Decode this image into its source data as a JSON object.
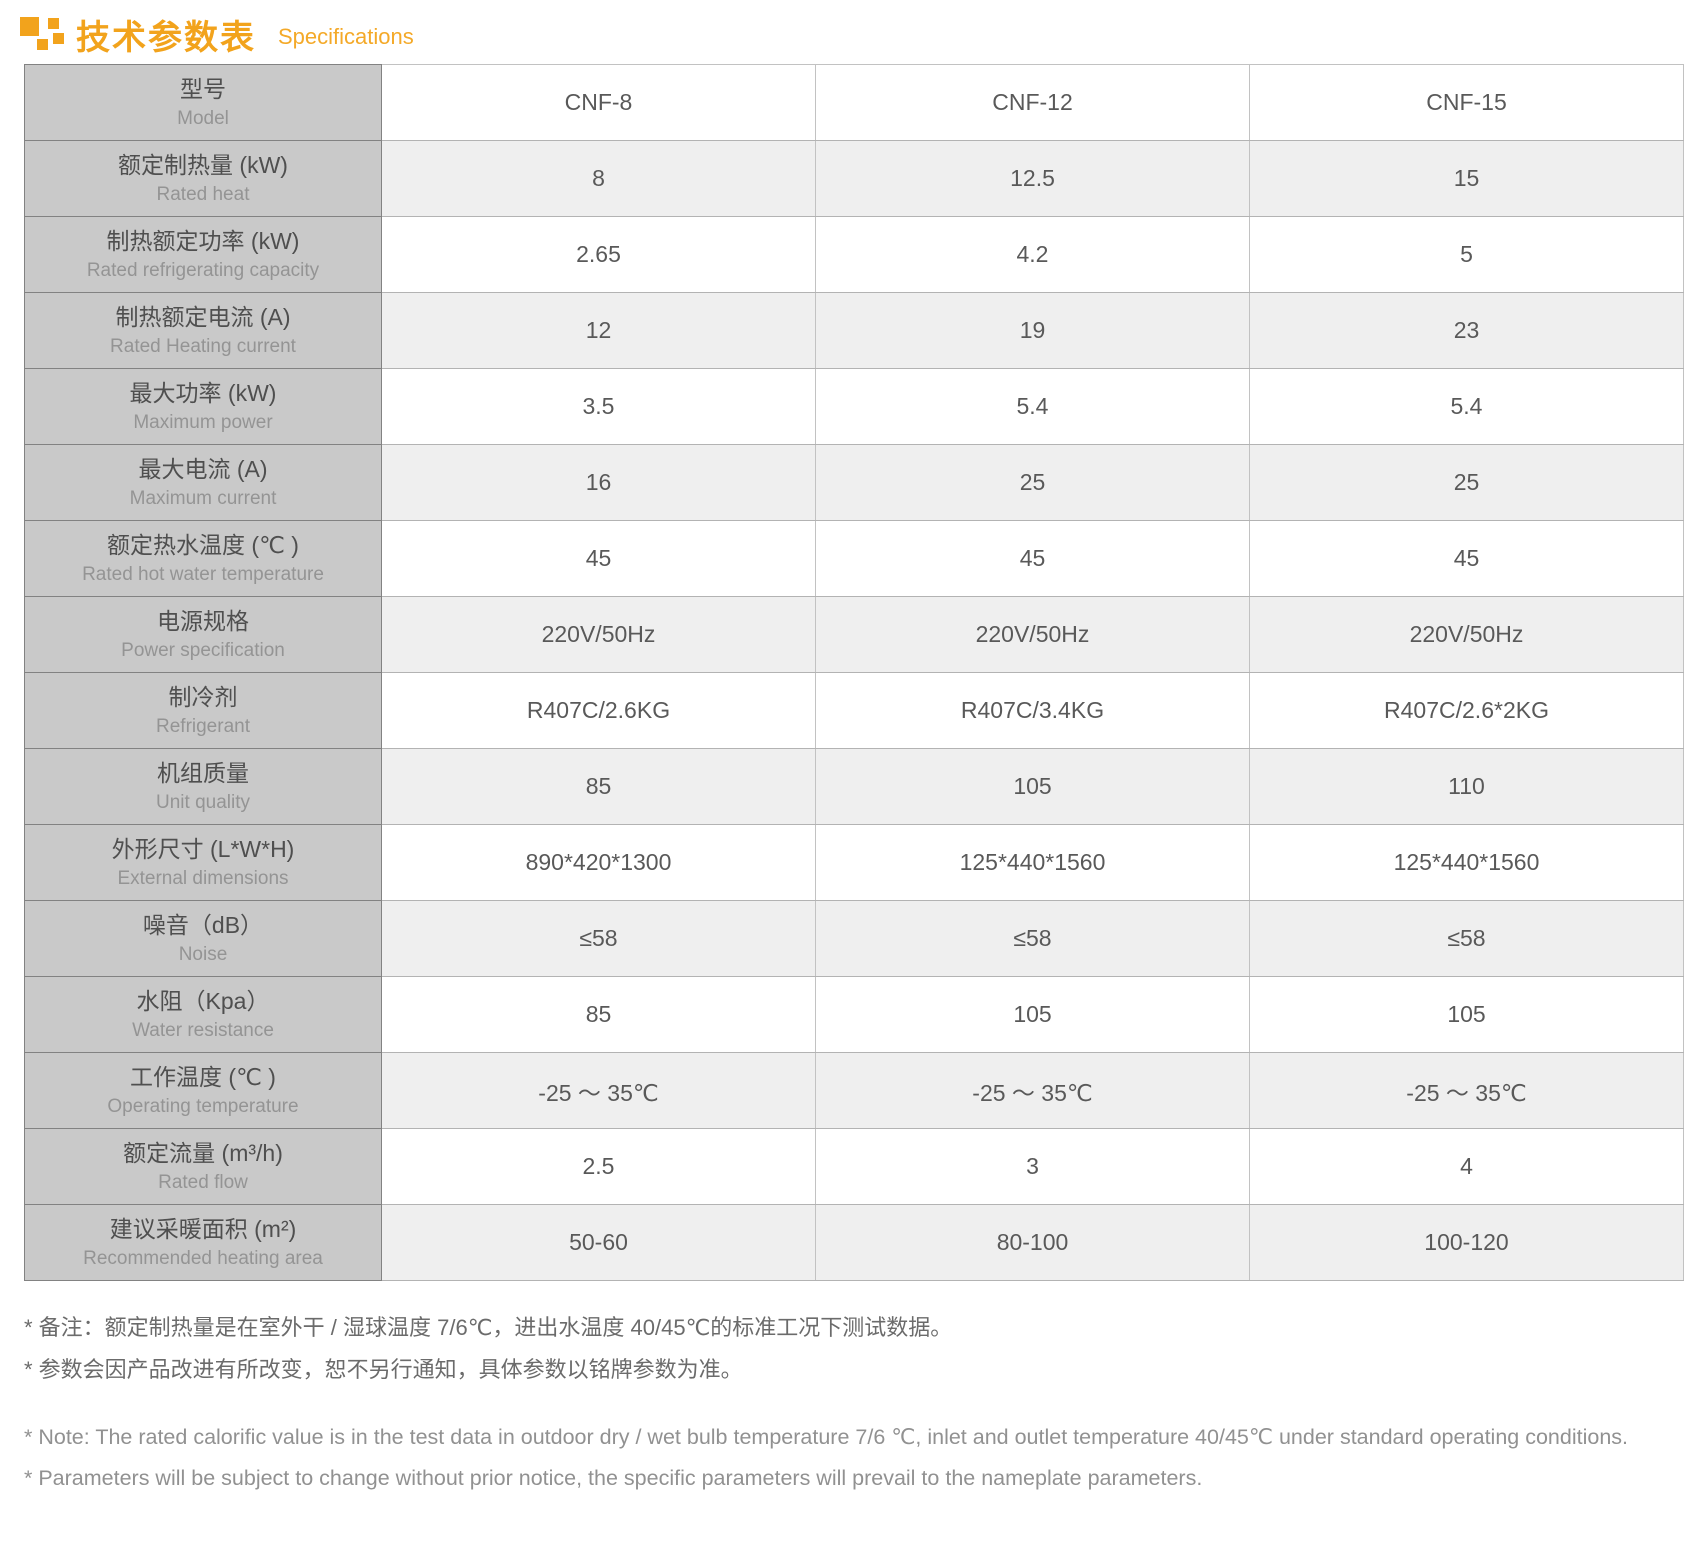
{
  "accent_color": "#f2a31c",
  "header": {
    "title_cn": "技术参数表",
    "title_en": "Specifications"
  },
  "table": {
    "header_row": {
      "label_cn": "型号",
      "label_en": "Model",
      "models": [
        "CNF-8",
        "CNF-12",
        "CNF-15"
      ]
    },
    "rows": [
      {
        "label_cn": "额定制热量 (kW)",
        "label_en": "Rated heat",
        "values": [
          "8",
          "12.5",
          "15"
        ]
      },
      {
        "label_cn": "制热额定功率 (kW)",
        "label_en": "Rated refrigerating capacity",
        "values": [
          "2.65",
          "4.2",
          "5"
        ]
      },
      {
        "label_cn": "制热额定电流 (A)",
        "label_en": "Rated Heating current",
        "values": [
          "12",
          "19",
          "23"
        ]
      },
      {
        "label_cn": "最大功率 (kW)",
        "label_en": "Maximum power",
        "values": [
          "3.5",
          "5.4",
          "5.4"
        ]
      },
      {
        "label_cn": "最大电流 (A)",
        "label_en": "Maximum current",
        "values": [
          "16",
          "25",
          "25"
        ]
      },
      {
        "label_cn": "额定热水温度 (℃ )",
        "label_en": "Rated hot water temperature",
        "values": [
          "45",
          "45",
          "45"
        ]
      },
      {
        "label_cn": "电源规格",
        "label_en": "Power specification",
        "values": [
          "220V/50Hz",
          "220V/50Hz",
          "220V/50Hz"
        ]
      },
      {
        "label_cn": "制冷剂",
        "label_en": "Refrigerant",
        "values": [
          "R407C/2.6KG",
          "R407C/3.4KG",
          "R407C/2.6*2KG"
        ]
      },
      {
        "label_cn": "机组质量",
        "label_en": "Unit quality",
        "values": [
          "85",
          "105",
          "110"
        ]
      },
      {
        "label_cn": "外形尺寸 (L*W*H)",
        "label_en": "External dimensions",
        "values": [
          "890*420*1300",
          "125*440*1560",
          "125*440*1560"
        ]
      },
      {
        "label_cn": "噪音（dB）",
        "label_en": "Noise",
        "values": [
          "≤58",
          "≤58",
          "≤58"
        ]
      },
      {
        "label_cn": "水阻（Kpa）",
        "label_en": "Water resistance",
        "values": [
          "85",
          "105",
          "105"
        ]
      },
      {
        "label_cn": "工作温度 (℃ )",
        "label_en": "Operating temperature",
        "values": [
          "-25 ～ 35℃",
          "-25 ～ 35℃",
          "-25 ～ 35℃"
        ]
      },
      {
        "label_cn": "额定流量 (m³/h)",
        "label_en": "Rated flow",
        "values": [
          "2.5",
          "3",
          "4"
        ]
      },
      {
        "label_cn": "建议采暖面积 (m²)",
        "label_en": "Recommended heating area",
        "values": [
          "50-60",
          "80-100",
          "100-120"
        ]
      }
    ]
  },
  "notes": {
    "cn": [
      "* 备注：额定制热量是在室外干 / 湿球温度 7/6℃，进出水温度 40/45℃的标准工况下测试数据。",
      "* 参数会因产品改进有所改变，恕不另行通知，具体参数以铭牌参数为准。"
    ],
    "en": [
      "* Note: The rated calorific value is in the test data in outdoor dry / wet bulb temperature 7/6 ℃, inlet and outlet temperature 40/45℃ under standard operating conditions.",
      "* Parameters will be subject to change without prior notice, the specific parameters will prevail to the nameplate parameters."
    ]
  }
}
